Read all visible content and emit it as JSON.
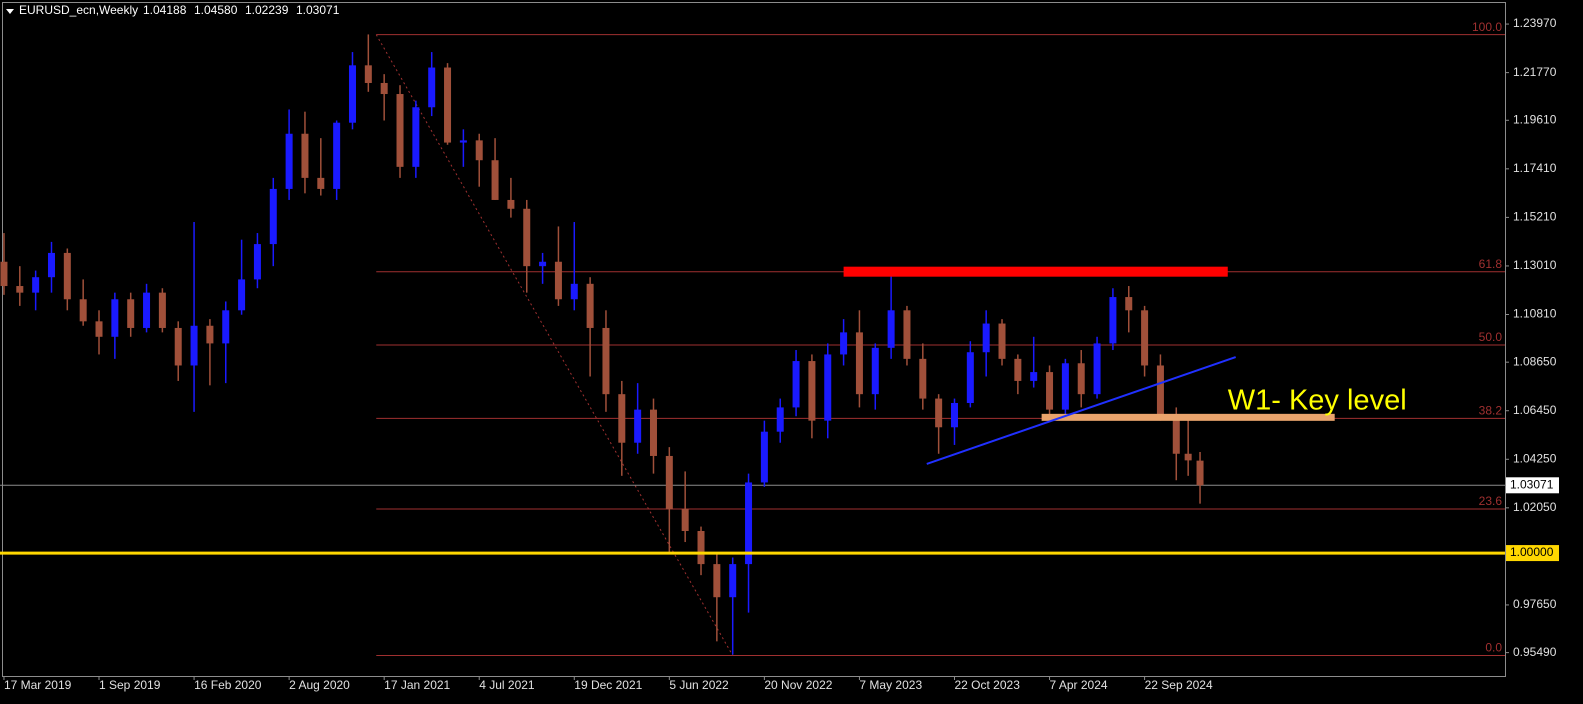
{
  "chart_data": {
    "type": "candlestick",
    "header": {
      "symbol": "EURUSD_ecn,Weekly",
      "ohlc": [
        "1.04188",
        "1.04580",
        "1.02239",
        "1.03071"
      ]
    },
    "up_color": "#1a1aff",
    "down_color": "#a0503a",
    "x": [
      0,
      4,
      8,
      12,
      16,
      20,
      24,
      28,
      32,
      36,
      40,
      44,
      48,
      52,
      56,
      60,
      64,
      68,
      72,
      76,
      80,
      84,
      88,
      92,
      96,
      100,
      104,
      108,
      112,
      116,
      120,
      124,
      128,
      132,
      136,
      140,
      144,
      148,
      152,
      156,
      160,
      164,
      168,
      172,
      176,
      180,
      184,
      188,
      192,
      196,
      200,
      204,
      208,
      212,
      216,
      220,
      224,
      228,
      232,
      236,
      240,
      244,
      248,
      252,
      256,
      260,
      264,
      268,
      272,
      276,
      280,
      284,
      288,
      292,
      296,
      299,
      302
    ],
    "open": [
      1.132,
      1.121,
      1.118,
      1.125,
      1.136,
      1.115,
      1.105,
      1.098,
      1.115,
      1.102,
      1.118,
      1.102,
      1.085,
      1.103,
      1.095,
      1.11,
      1.124,
      1.14,
      1.165,
      1.19,
      1.17,
      1.165,
      1.195,
      1.221,
      1.213,
      1.208,
      1.175,
      1.202,
      1.22,
      1.186,
      1.187,
      1.178,
      1.16,
      1.156,
      1.13,
      1.132,
      1.115,
      1.122,
      1.102,
      1.072,
      1.05,
      1.065,
      1.044,
      1.02,
      1.01,
      0.995,
      0.98,
      0.995,
      1.032,
      1.055,
      1.066,
      1.087,
      1.06,
      1.09,
      1.1,
      1.072,
      1.093,
      1.11,
      1.088,
      1.07,
      1.057,
      1.068,
      1.091,
      1.104,
      1.088,
      1.078,
      1.082,
      1.065,
      1.086,
      1.072,
      1.095,
      1.116,
      1.11,
      1.085,
      1.063,
      1.045,
      1.04188
    ],
    "high": [
      1.145,
      1.13,
      1.128,
      1.141,
      1.138,
      1.124,
      1.11,
      1.118,
      1.118,
      1.122,
      1.12,
      1.105,
      1.15,
      1.106,
      1.114,
      1.142,
      1.145,
      1.17,
      1.201,
      1.2,
      1.188,
      1.196,
      1.227,
      1.235,
      1.217,
      1.212,
      1.205,
      1.227,
      1.222,
      1.192,
      1.19,
      1.188,
      1.17,
      1.16,
      1.136,
      1.148,
      1.15,
      1.125,
      1.11,
      1.078,
      1.077,
      1.07,
      1.048,
      1.037,
      1.012,
      1.0,
      0.998,
      1.036,
      1.06,
      1.07,
      1.092,
      1.09,
      1.095,
      1.106,
      1.11,
      1.095,
      1.128,
      1.112,
      1.095,
      1.072,
      1.07,
      1.096,
      1.11,
      1.106,
      1.09,
      1.098,
      1.085,
      1.088,
      1.092,
      1.098,
      1.12,
      1.121,
      1.112,
      1.09,
      1.066,
      1.063,
      1.0458
    ],
    "low": [
      1.117,
      1.112,
      1.11,
      1.118,
      1.11,
      1.103,
      1.09,
      1.088,
      1.098,
      1.1,
      1.1,
      1.078,
      1.064,
      1.076,
      1.077,
      1.108,
      1.12,
      1.13,
      1.16,
      1.163,
      1.162,
      1.16,
      1.192,
      1.209,
      1.196,
      1.17,
      1.17,
      1.198,
      1.185,
      1.175,
      1.166,
      1.16,
      1.152,
      1.118,
      1.122,
      1.112,
      1.11,
      1.08,
      1.064,
      1.035,
      1.045,
      1.036,
      1.0,
      1.005,
      0.99,
      0.96,
      0.954,
      0.973,
      1.03,
      1.05,
      1.062,
      1.052,
      1.052,
      1.085,
      1.066,
      1.065,
      1.088,
      1.085,
      1.065,
      1.045,
      1.049,
      1.066,
      1.08,
      1.085,
      1.072,
      1.075,
      1.06,
      1.063,
      1.066,
      1.07,
      1.092,
      1.1,
      1.08,
      1.06,
      1.033,
      1.035,
      1.02239
    ],
    "close": [
      1.121,
      1.118,
      1.125,
      1.136,
      1.115,
      1.105,
      1.098,
      1.115,
      1.102,
      1.118,
      1.102,
      1.085,
      1.103,
      1.095,
      1.11,
      1.124,
      1.14,
      1.165,
      1.19,
      1.17,
      1.165,
      1.195,
      1.221,
      1.213,
      1.208,
      1.175,
      1.202,
      1.22,
      1.186,
      1.187,
      1.178,
      1.16,
      1.156,
      1.13,
      1.132,
      1.115,
      1.122,
      1.102,
      1.072,
      1.05,
      1.065,
      1.044,
      1.02,
      1.01,
      0.995,
      0.98,
      0.995,
      1.032,
      1.055,
      1.066,
      1.087,
      1.06,
      1.09,
      1.1,
      1.072,
      1.093,
      1.11,
      1.088,
      1.07,
      1.057,
      1.068,
      1.091,
      1.104,
      1.088,
      1.078,
      1.082,
      1.065,
      1.086,
      1.072,
      1.095,
      1.116,
      1.11,
      1.085,
      1.063,
      1.045,
      1.042,
      1.03071
    ],
    "xlim": [
      -1,
      379
    ],
    "ylim": [
      0.9443,
      1.2506
    ],
    "xticks": [
      {
        "value": 0,
        "label": "17 Mar 2019"
      },
      {
        "value": 24,
        "label": "1 Sep 2019"
      },
      {
        "value": 48,
        "label": "16 Feb 2020"
      },
      {
        "value": 72,
        "label": "2 Aug 2020"
      },
      {
        "value": 96,
        "label": "17 Jan 2021"
      },
      {
        "value": 120,
        "label": "4 Jul 2021"
      },
      {
        "value": 144,
        "label": "19 Dec 2021"
      },
      {
        "value": 168,
        "label": "5 Jun 2022"
      },
      {
        "value": 192,
        "label": "20 Nov 2022"
      },
      {
        "value": 216,
        "label": "7 May 2023"
      },
      {
        "value": 240,
        "label": "22 Oct 2023"
      },
      {
        "value": 264,
        "label": "7 Apr 2024"
      },
      {
        "value": 288,
        "label": "22 Sep 2024"
      }
    ],
    "yticks": [
      {
        "value": 1.2397,
        "label": "1.23970"
      },
      {
        "value": 1.2177,
        "label": "1.21770"
      },
      {
        "value": 1.1961,
        "label": "1.19610"
      },
      {
        "value": 1.1741,
        "label": "1.17410"
      },
      {
        "value": 1.1521,
        "label": "1.15210"
      },
      {
        "value": 1.1301,
        "label": "1.13010"
      },
      {
        "value": 1.1081,
        "label": "1.10810"
      },
      {
        "value": 1.0865,
        "label": "1.08650"
      },
      {
        "value": 1.0645,
        "label": "1.06450"
      },
      {
        "value": 1.0425,
        "label": "1.04250"
      },
      {
        "value": 1.0205,
        "label": "1.02050"
      },
      {
        "value": 0.9765,
        "label": "0.97650"
      },
      {
        "value": 0.9549,
        "label": "0.95490"
      }
    ],
    "current_price": {
      "value": 1.03071,
      "label": "1.03071"
    },
    "key_level": {
      "value": 1,
      "label": "1.00000",
      "color": "#ffd700"
    },
    "fibonacci": {
      "start_x": 94,
      "end_x": 184,
      "high": 1.2349,
      "low": 0.9536,
      "color": "#a03030",
      "levels": [
        {
          "value": 100,
          "label": "100.0"
        },
        {
          "value": 61.8,
          "label": "61.8"
        },
        {
          "value": 50,
          "label": "50.0"
        },
        {
          "value": 38.2,
          "label": "38.2"
        },
        {
          "value": 23.6,
          "label": "23.6"
        },
        {
          "value": 0,
          "label": "0.0"
        }
      ]
    },
    "resistance_zone": {
      "x": [
        212,
        309
      ],
      "price": 1.1275,
      "color": "#ff0000"
    },
    "support_zone": {
      "x": [
        262,
        336
      ],
      "price": 1.0615,
      "color": "#e9a36c"
    },
    "trendline": {
      "x": [
        233,
        311
      ],
      "y": [
        1.0404,
        1.0888
      ],
      "color": "#2030ff"
    },
    "annotation": {
      "text": "W1- Key level",
      "x": 309,
      "y": 1.0685,
      "color": "#ffff00"
    }
  }
}
